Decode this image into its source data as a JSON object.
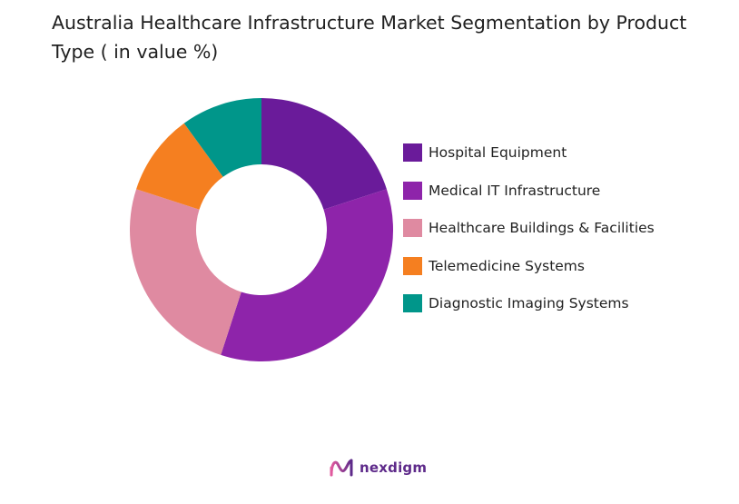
{
  "chart_data": {
    "type": "pie",
    "title": "Australia Healthcare Infrastructure Market Segmentation by Product Type ( in value %)",
    "categories": [
      "Hospital Equipment",
      "Medical IT Infrastructure",
      "Healthcare Buildings & Facilities",
      "Telemedicine Systems",
      "Diagnostic Imaging Systems"
    ],
    "values": [
      20,
      35,
      25,
      10,
      10
    ],
    "colors": [
      "#6a1b9a",
      "#8e24aa",
      "#df8aa1",
      "#f57f20",
      "#00968a"
    ],
    "donut": true,
    "legend_position": "right"
  },
  "brand": {
    "name": "nexdigm",
    "icon": "nexdigm-logo-icon"
  }
}
